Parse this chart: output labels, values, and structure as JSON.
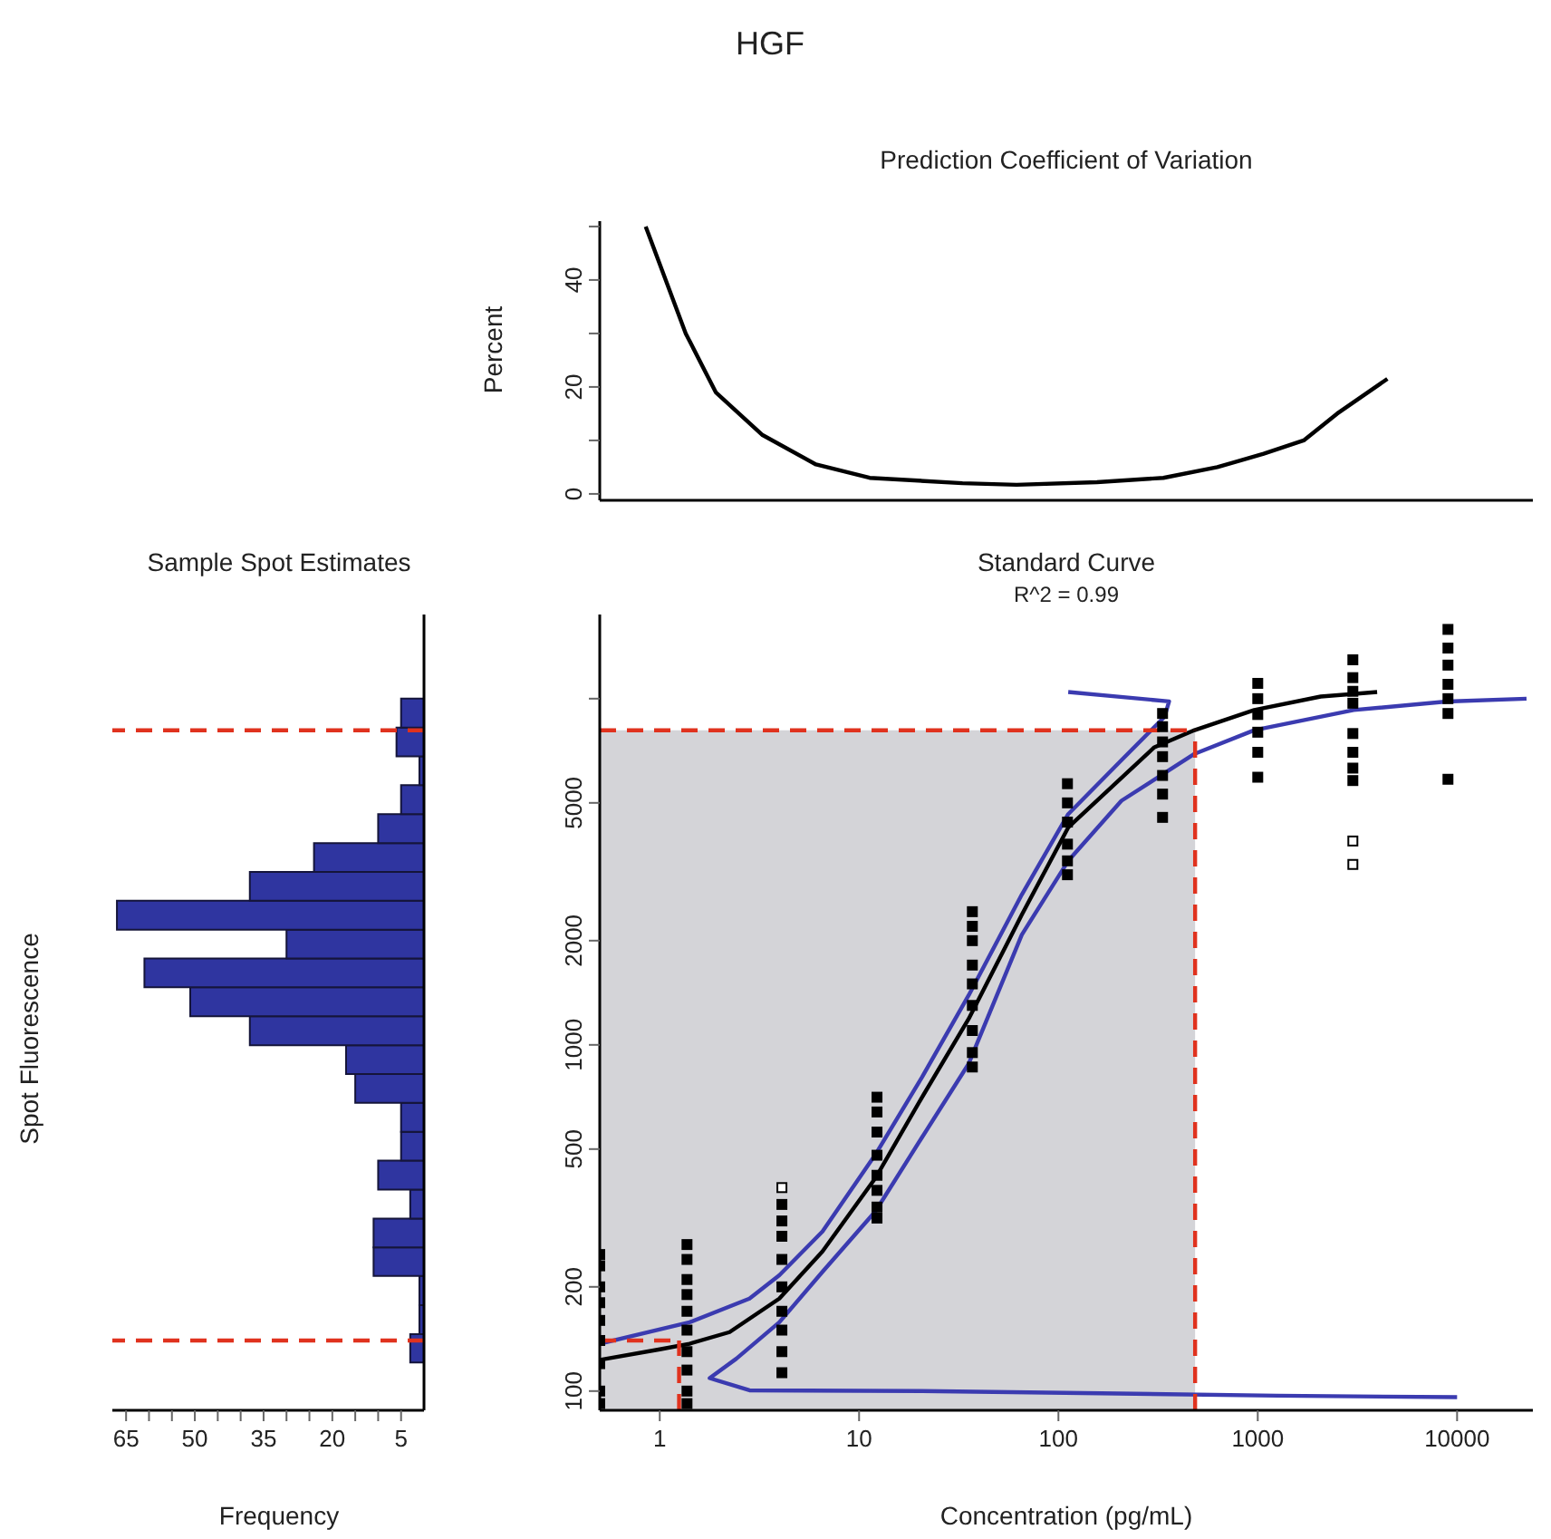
{
  "chart_data": [
    {
      "type": "line",
      "title": "HGF",
      "subtitle": "Prediction Coefficient of Variation",
      "ylabel": "Percent",
      "log": "x",
      "tick_labels": "y",
      "xlim": [
        0.5,
        24000
      ],
      "ylim": [
        -1.2,
        51
      ],
      "yticks": [
        0,
        {
          "value": 10,
          "label": null
        },
        20,
        {
          "value": 30,
          "label": null
        },
        40,
        {
          "value": 50,
          "label": null
        }
      ],
      "x": [
        0.85,
        1.35,
        1.91,
        3.28,
        6.08,
        11.3,
        33,
        61.7,
        156,
        336,
        627,
        1070,
        1700,
        2500,
        4470
      ],
      "series": [
        {
          "color": "#000000",
          "values": [
            50,
            30,
            19,
            11,
            5.5,
            3,
            2,
            1.7,
            2.2,
            3,
            5,
            7.5,
            10,
            15,
            21.5
          ]
        }
      ]
    },
    {
      "type": "histogram",
      "orientation": "horizontal",
      "title": "Sample Spot Estimates",
      "xlabel": "Frequency",
      "ylabel": "Spot Fluorescence",
      "log": "y",
      "tick_labels": "x",
      "color": "#2f35a0",
      "xlim": [
        68,
        0
      ],
      "xticks": [
        65,
        {
          "value": 60,
          "label": null
        },
        {
          "value": 55,
          "label": null
        },
        50,
        {
          "value": 45,
          "label": null
        },
        {
          "value": 40,
          "label": null
        },
        35,
        {
          "value": 30,
          "label": null
        },
        {
          "value": 25,
          "label": null
        },
        20,
        {
          "value": 15,
          "label": null
        },
        {
          "value": 10,
          "label": null
        },
        5
      ],
      "ylim": [
        88,
        17500
      ],
      "bins": [
        121,
        146,
        177,
        215,
        260,
        315,
        382,
        463,
        561,
        680,
        824,
        998,
        1209,
        1466,
        1776,
        2152,
        2608,
        3159,
        3828,
        4640,
        5622,
        6812,
        8254,
        10000
      ],
      "values": [
        3,
        1,
        1,
        11,
        11,
        3,
        10,
        5,
        5,
        15,
        17,
        38,
        51,
        61,
        30,
        67,
        38,
        24,
        10,
        5,
        1,
        6,
        5
      ],
      "ref_lines": [
        {
          "axis": "y",
          "value": 8100,
          "color": "#e0321e",
          "line_style": "dashed"
        },
        {
          "axis": "y",
          "value": 140,
          "color": "#e0321e",
          "line_style": "dashed"
        }
      ]
    },
    {
      "type": "scatter",
      "title": "Standard Curve",
      "subtitle": "R^2 = 0.99",
      "xlabel": "Concentration (pg/mL)",
      "log": "xy",
      "marker": "square",
      "xlim": [
        0.5,
        24000
      ],
      "xticks": [
        1,
        10,
        100,
        1000,
        10000
      ],
      "ylim": [
        88,
        17500
      ],
      "yticks": [
        100,
        200,
        500,
        1000,
        2000,
        5000,
        {
          "value": 10000,
          "label": null
        }
      ],
      "bands": [
        {
          "axis": "x",
          "from": 0.5,
          "to": 485,
          "color": "#d4d4d8"
        }
      ],
      "ref_lines": [
        {
          "axis": "y",
          "value": 140,
          "color": "#e0321e",
          "line_style": "dashed"
        },
        {
          "axis": "x",
          "value": 1.25,
          "color": "#e0321e",
          "line_style": "dashed"
        },
        {
          "axis": "y",
          "value": 8100,
          "color": "#e0321e",
          "line_style": "dashed"
        },
        {
          "axis": "x",
          "value": 485,
          "color": "#e0321e",
          "line_style": "dashed"
        }
      ],
      "series": [
        {
          "type": "line",
          "marker": "none",
          "color": "#000000",
          "x": [
            0.5,
            1,
            1.41,
            2.24,
            3.98,
            6.55,
            12.1,
            20.7,
            35.5,
            65.5,
            112,
            303,
            482,
            960,
            2070,
            3970
          ],
          "values": [
            123,
            132,
            137,
            148,
            185,
            253,
            413,
            706,
            1190,
            2375,
            4245,
            7240,
            8110,
            9270,
            10140,
            10450
          ]
        },
        {
          "type": "line",
          "marker": "none",
          "color": "#3b3bb0",
          "x": [
            0.5,
            1.41,
            2.82,
            3.98,
            6.55,
            12.1,
            20.7,
            35.5,
            65.5,
            112,
            207,
            341,
            359,
            112
          ],
          "values": [
            137,
            158,
            185,
            216,
            289,
            483,
            807,
            1392,
            2716,
            4640,
            6640,
            8870,
            9820,
            10450
          ]
        },
        {
          "type": "line",
          "marker": "none",
          "color": "#3b3bb0",
          "x": [
            10000,
            1256,
            164,
            20.7,
            2.82,
            1.78,
            2.42,
            3.98,
            6.55,
            12.1,
            20.7,
            35.5,
            65.5,
            112,
            207,
            482,
            960,
            3030,
            8870,
            22300
          ],
          "values": [
            96,
            97,
            98.5,
            100,
            100.5,
            109,
            124,
            158,
            221,
            331,
            541,
            883,
            2080,
            3400,
            5070,
            6930,
            8110,
            9270,
            9810,
            10000
          ]
        },
        {
          "type": "scatter",
          "color": "#000000",
          "x": [
            0.5,
            0.5,
            0.5,
            0.5,
            0.5,
            0.5,
            0.5,
            0.5,
            0.5,
            1.37,
            1.37,
            1.37,
            1.37,
            1.37,
            1.37,
            1.37,
            1.37,
            1.37,
            1.37,
            4.1,
            4.1,
            4.1,
            4.1,
            4.1,
            4.1,
            4.1,
            4.1,
            4.1,
            12.3,
            12.3,
            12.3,
            12.3,
            12.3,
            12.3,
            12.3,
            12.3,
            37,
            37,
            37,
            37,
            37,
            37,
            37,
            37,
            37,
            111,
            111,
            111,
            111,
            111,
            111,
            333,
            333,
            333,
            333,
            333,
            333,
            333,
            1000,
            1000,
            1000,
            1000,
            1000,
            1000,
            3000,
            3000,
            3000,
            3000,
            3000,
            3000,
            3000,
            3000,
            9000,
            9000,
            9000,
            9000,
            9000,
            9000,
            9000
          ],
          "values": [
            248,
            230,
            200,
            180,
            160,
            140,
            120,
            100,
            92,
            265,
            240,
            210,
            190,
            170,
            150,
            130,
            115,
            100,
            92,
            346,
            310,
            280,
            240,
            200,
            170,
            150,
            130,
            113,
            706,
            640,
            560,
            480,
            420,
            380,
            340,
            316,
            2425,
            2200,
            2000,
            1700,
            1500,
            1300,
            1100,
            950,
            863,
            5680,
            5000,
            4400,
            3800,
            3400,
            3100,
            9060,
            8300,
            7500,
            6800,
            6000,
            5300,
            4540,
            11070,
            10000,
            9000,
            8000,
            7000,
            5930,
            12950,
            11500,
            10500,
            9700,
            7930,
            7000,
            6300,
            5800,
            15850,
            14000,
            12500,
            11000,
            10000,
            9060,
            5850
          ]
        },
        {
          "type": "scatter",
          "color": "#ffffff",
          "x": [
            4.1,
            3000,
            3000
          ],
          "values": [
            387,
            3880,
            3320
          ]
        }
      ]
    }
  ]
}
